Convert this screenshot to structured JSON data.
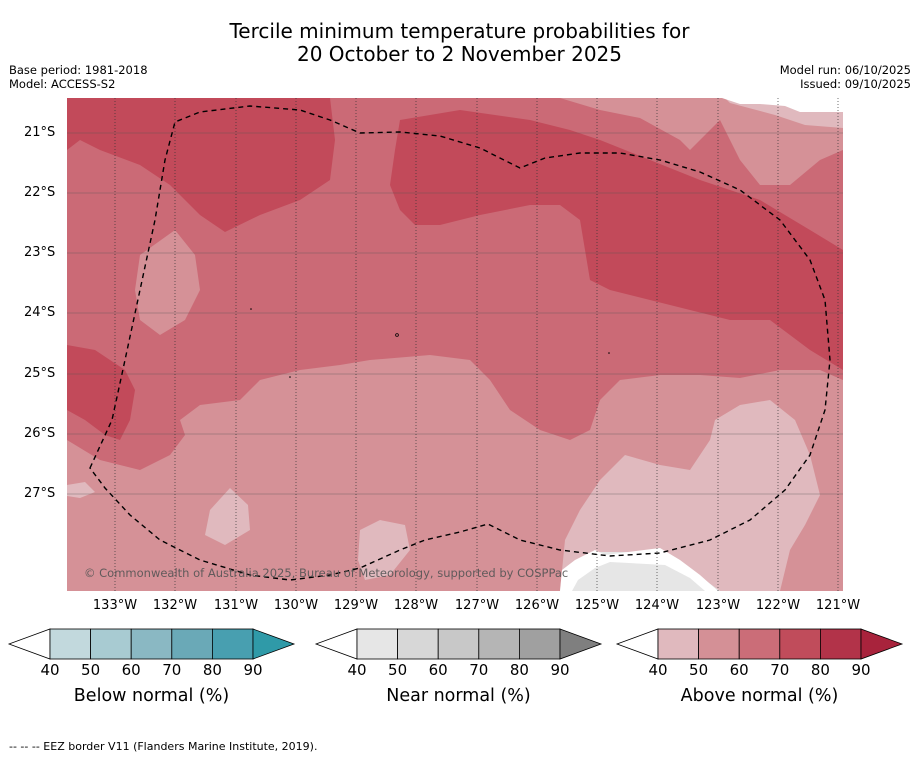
{
  "title_line1": "Tercile minimum temperature probabilities for",
  "title_line2": "20 October to 2 November 2025",
  "meta_left": [
    "Base period: 1981-2018",
    "Model: ACCESS-S2"
  ],
  "meta_right": [
    "Model run: 06/10/2025",
    "Issued: 09/10/2025"
  ],
  "copyright": "© Commonwealth of Australia 2025, Bureau of Meteorology, supported by COSPPac",
  "lat_labels": [
    "21°S",
    "22°S",
    "23°S",
    "24°S",
    "25°S",
    "26°S",
    "27°S"
  ],
  "lon_labels": [
    "133°W",
    "132°W",
    "131°W",
    "130°W",
    "129°W",
    "128°W",
    "127°W",
    "126°W",
    "125°W",
    "124°W",
    "123°W",
    "122°W",
    "121°W"
  ],
  "colorbars": [
    {
      "name": "below",
      "label": "Below normal (%)",
      "ticks": [
        "40",
        "50",
        "60",
        "70",
        "80",
        "90"
      ],
      "colors": [
        "#ffffff",
        "#c2d9dd",
        "#a8cbd2",
        "#8ab8c3",
        "#6aa9b7",
        "#489fb0",
        "#2f9aa8"
      ]
    },
    {
      "name": "near",
      "label": "Near normal (%)",
      "ticks": [
        "40",
        "50",
        "60",
        "70",
        "80",
        "90"
      ],
      "colors": [
        "#ffffff",
        "#e6e6e6",
        "#d7d7d7",
        "#c8c8c8",
        "#b5b5b5",
        "#a0a0a0",
        "#7f7f7f"
      ]
    },
    {
      "name": "above",
      "label": "Above normal (%)",
      "ticks": [
        "40",
        "50",
        "60",
        "70",
        "80",
        "90"
      ],
      "colors": [
        "#ffffff",
        "#e0b9be",
        "#d49096",
        "#cb6d78",
        "#c04c5b",
        "#b23349",
        "#a8233c"
      ]
    }
  ],
  "map_colors": {
    "above_40_50": "#e0b9be",
    "above_50_60": "#d59197",
    "above_60_70": "#cb6a76",
    "above_70_80": "#c24a5a",
    "near_40_50": "#e6e6e6",
    "eez_border": "#000000"
  },
  "footnote": "-- -- -- EEZ border V11 (Flanders Marine Institute, 2019)."
}
